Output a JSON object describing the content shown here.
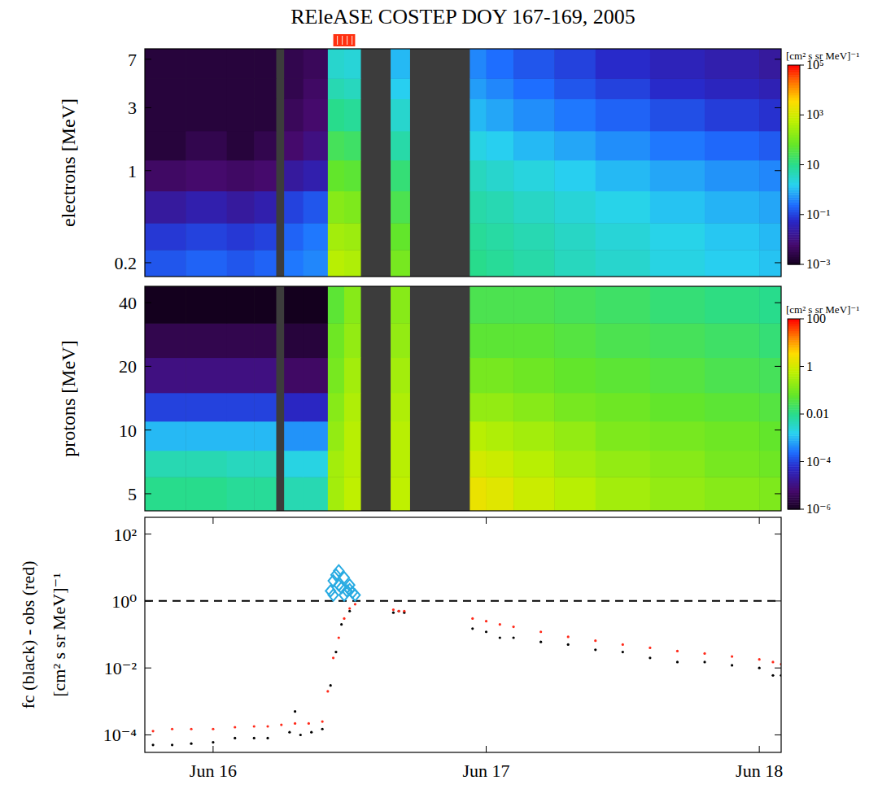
{
  "chart_data": [
    {
      "type": "heatmap",
      "title": "REleASE COSTEP DOY 167-169, 2005",
      "y_label": "electrons [MeV]",
      "log": true,
      "tick_labels": "y",
      "xlim": [
        166.75,
        169.08
      ],
      "ylim": [
        0.157,
        8.4
      ],
      "yticks": [
        0.2,
        1,
        3,
        7
      ],
      "alert": [
        167.44,
        167.52
      ],
      "x_edges": [
        166.75,
        166.9,
        167.05,
        167.15,
        167.23,
        167.26,
        167.33,
        167.42,
        167.48,
        167.54,
        167.65,
        167.72,
        167.94,
        168.0,
        168.1,
        168.25,
        168.4,
        168.6,
        168.8,
        169.0,
        169.08
      ],
      "y_edges": [
        0.157,
        0.25,
        0.4,
        0.7,
        1.2,
        2,
        3.5,
        5,
        8.4
      ],
      "cells": [
        [
          0.15,
          0.2,
          0.15,
          0.2,
          null,
          0.3,
          0.4,
          500,
          400,
          null,
          100,
          null,
          10,
          8,
          6,
          4,
          3,
          2,
          1.5,
          1.2
        ],
        [
          0.08,
          0.1,
          0.08,
          0.1,
          null,
          0.2,
          0.3,
          300,
          250,
          null,
          60,
          null,
          8,
          6.5,
          5,
          3.5,
          2.5,
          1.8,
          1.3,
          1
        ],
        [
          0.02,
          0.03,
          0.02,
          0.03,
          null,
          0.1,
          0.15,
          150,
          120,
          null,
          30,
          null,
          6,
          5,
          3.5,
          2.5,
          1.8,
          1.2,
          0.9,
          0.7
        ],
        [
          0.005,
          0.006,
          0.005,
          0.006,
          null,
          0.02,
          0.03,
          60,
          50,
          null,
          15,
          null,
          4,
          3,
          2.2,
          1.5,
          1,
          0.7,
          0.5,
          0.4
        ],
        [
          0.002,
          0.003,
          0.002,
          0.003,
          null,
          0.006,
          0.01,
          25,
          20,
          null,
          6,
          null,
          2,
          1.5,
          1,
          0.7,
          0.45,
          0.3,
          0.22,
          0.17
        ],
        [
          0.002,
          0.002,
          0.002,
          0.002,
          null,
          0.004,
          0.006,
          10,
          8,
          null,
          3,
          null,
          1,
          0.7,
          0.45,
          0.3,
          0.2,
          0.13,
          0.09,
          0.07
        ],
        [
          0.002,
          0.002,
          0.002,
          0.002,
          null,
          0.003,
          0.005,
          5,
          4,
          null,
          1.5,
          null,
          0.6,
          0.4,
          0.25,
          0.15,
          0.1,
          0.06,
          0.045,
          0.035
        ],
        [
          0.002,
          0.002,
          0.002,
          0.002,
          null,
          0.003,
          0.004,
          3,
          2.5,
          null,
          1,
          null,
          0.4,
          0.25,
          0.15,
          0.1,
          0.06,
          0.04,
          0.03,
          0.02
        ]
      ],
      "color_range": [
        0.001,
        100000
      ],
      "color_ticks": [
        {
          "value": 0.001,
          "label": "10⁻³"
        },
        {
          "value": 0.1,
          "label": "10⁻¹"
        },
        10,
        {
          "value": 1000,
          "label": "10³"
        },
        {
          "value": 100000,
          "label": "10⁵"
        }
      ],
      "color_label": "[cm² s sr MeV]⁻¹"
    },
    {
      "type": "heatmap",
      "y_label": "protons [MeV]",
      "log": true,
      "tick_labels": "y",
      "xlim": [
        166.75,
        169.08
      ],
      "ylim": [
        4.15,
        47.8
      ],
      "yticks": [
        5,
        10,
        20,
        40
      ],
      "x_edges": [
        166.75,
        166.9,
        167.05,
        167.15,
        167.23,
        167.26,
        167.33,
        167.42,
        167.48,
        167.54,
        167.65,
        167.72,
        167.94,
        168.0,
        168.1,
        168.25,
        168.4,
        168.6,
        168.8,
        169.0,
        169.08
      ],
      "y_edges": [
        4.15,
        6,
        8,
        11,
        15,
        22,
        32,
        47.8
      ],
      "cells": [
        [
          0.01,
          0.01,
          0.008,
          0.008,
          null,
          0.005,
          0.005,
          0.3,
          0.6,
          null,
          0.6,
          null,
          2,
          1.5,
          0.8,
          0.5,
          0.3,
          0.2,
          0.15,
          0.12
        ],
        [
          0.005,
          0.005,
          0.004,
          0.004,
          null,
          0.002,
          0.002,
          0.3,
          0.5,
          null,
          0.5,
          null,
          1,
          0.8,
          0.5,
          0.3,
          0.2,
          0.15,
          0.1,
          0.08
        ],
        [
          0.001,
          0.001,
          0.001,
          0.001,
          null,
          0.0005,
          0.0005,
          0.2,
          0.5,
          null,
          0.5,
          null,
          0.5,
          0.4,
          0.3,
          0.2,
          0.12,
          0.1,
          0.08,
          0.06
        ],
        [
          0.0001,
          0.0001,
          0.0001,
          0.0001,
          null,
          5e-05,
          5e-05,
          0.15,
          0.4,
          null,
          0.4,
          null,
          0.2,
          0.2,
          0.15,
          0.1,
          0.08,
          0.06,
          0.05,
          0.04
        ],
        [
          1e-05,
          1e-05,
          1e-05,
          1e-05,
          null,
          5e-06,
          5e-06,
          0.1,
          0.3,
          null,
          0.3,
          null,
          0.1,
          0.1,
          0.08,
          0.06,
          0.05,
          0.04,
          0.03,
          0.025
        ],
        [
          3e-06,
          3e-06,
          3e-06,
          3e-06,
          null,
          2e-06,
          2e-06,
          0.08,
          0.2,
          null,
          0.2,
          null,
          0.05,
          0.05,
          0.05,
          0.04,
          0.03,
          0.025,
          0.02,
          0.015
        ],
        [
          1e-06,
          1e-06,
          1e-06,
          1e-06,
          null,
          1e-06,
          1e-06,
          0.05,
          0.15,
          null,
          0.15,
          null,
          0.03,
          0.03,
          0.03,
          0.025,
          0.02,
          0.015,
          0.012,
          0.01
        ]
      ],
      "color_range": [
        1e-06,
        100
      ],
      "color_ticks": [
        {
          "value": 1e-06,
          "label": "10⁻⁶"
        },
        {
          "value": 0.0001,
          "label": "10⁻⁴"
        },
        0.01,
        1,
        100
      ],
      "color_label": "[cm² s sr MeV]⁻¹"
    },
    {
      "type": "scatter",
      "y_label": [
        "fc (black) - obs (red)",
        "[cm² s sr MeV]⁻¹"
      ],
      "log": "y",
      "xlim": [
        166.75,
        169.08
      ],
      "ylim": [
        3e-05,
        316
      ],
      "xticks": [
        {
          "value": 167,
          "label": "Jun 16"
        },
        {
          "value": 168,
          "label": "Jun 17"
        },
        {
          "value": 169,
          "label": "Jun 18"
        }
      ],
      "yticks": [
        {
          "value": 100,
          "label": "10²"
        },
        {
          "value": 1,
          "label": "10⁰"
        },
        {
          "value": 0.01,
          "label": "10⁻²"
        },
        {
          "value": 0.0001,
          "label": "10⁻⁴"
        }
      ],
      "reference_line": 1,
      "series": [
        {
          "color": "#000000",
          "marker": "dot",
          "x": [
            166.78,
            166.85,
            166.92,
            167.0,
            167.08,
            167.15,
            167.2,
            167.28,
            167.3,
            167.32,
            167.36,
            167.4,
            167.43,
            167.45,
            167.47,
            167.5,
            167.66,
            167.68,
            167.7,
            167.95,
            168.0,
            168.05,
            168.1,
            168.2,
            168.3,
            168.4,
            168.5,
            168.6,
            168.7,
            168.8,
            168.9,
            169.0,
            169.05,
            169.08
          ],
          "values": [
            5e-05,
            5e-05,
            5.5e-05,
            6e-05,
            8e-05,
            8e-05,
            8e-05,
            0.00012,
            0.0005,
            0.0001,
            0.00012,
            0.00015,
            0.003,
            0.03,
            0.2,
            0.5,
            0.45,
            0.5,
            0.45,
            0.15,
            0.12,
            0.08,
            0.08,
            0.06,
            0.05,
            0.035,
            0.03,
            0.02,
            0.015,
            0.015,
            0.012,
            0.01,
            0.006,
            0.006
          ]
        },
        {
          "color": "#ff2a1a",
          "marker": "dot",
          "x": [
            166.78,
            166.85,
            166.92,
            167.0,
            167.08,
            167.15,
            167.2,
            167.25,
            167.3,
            167.35,
            167.4,
            167.42,
            167.44,
            167.46,
            167.48,
            167.5,
            167.52,
            167.66,
            167.68,
            167.7,
            167.95,
            168.0,
            168.05,
            168.1,
            168.2,
            168.3,
            168.4,
            168.5,
            168.6,
            168.7,
            168.8,
            168.9,
            169.0,
            169.05,
            169.08
          ],
          "values": [
            0.00013,
            0.00015,
            0.00015,
            0.00015,
            0.00017,
            0.00018,
            0.00018,
            0.0002,
            0.00022,
            0.00022,
            0.00025,
            0.002,
            0.02,
            0.08,
            0.3,
            0.6,
            0.8,
            0.55,
            0.5,
            0.5,
            0.3,
            0.25,
            0.2,
            0.17,
            0.12,
            0.085,
            0.065,
            0.05,
            0.04,
            0.032,
            0.027,
            0.022,
            0.018,
            0.015,
            0.013
          ]
        },
        {
          "color": "#29abe2",
          "marker": "diamond",
          "x": [
            167.43,
            167.44,
            167.45,
            167.46,
            167.47,
            167.48,
            167.49,
            167.5,
            167.51,
            167.52,
            167.44,
            167.46,
            167.48,
            167.5
          ],
          "values": [
            2,
            4,
            6,
            3,
            2.5,
            5,
            2,
            3,
            1.8,
            1.5,
            1.5,
            8,
            1.5,
            2.2
          ]
        }
      ]
    }
  ]
}
